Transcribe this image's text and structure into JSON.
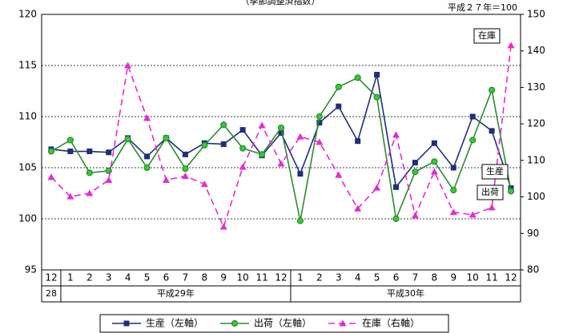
{
  "chart_data": {
    "type": "line",
    "title": "（季節調整済指数）",
    "base_note": "平成２７年＝100",
    "categories": [
      "12",
      "1",
      "2",
      "3",
      "4",
      "5",
      "6",
      "7",
      "8",
      "9",
      "10",
      "11",
      "12",
      "1",
      "2",
      "3",
      "4",
      "5",
      "6",
      "7",
      "8",
      "9",
      "10",
      "11",
      "12"
    ],
    "category_groups": [
      {
        "label": "28",
        "count": 1
      },
      {
        "label": "平成29年",
        "count": 12
      },
      {
        "label": "平成30年",
        "count": 12
      }
    ],
    "ylim": [
      95,
      120
    ],
    "yticks": [
      95,
      100,
      105,
      110,
      115,
      120
    ],
    "y2lim": [
      80,
      150
    ],
    "y2ticks": [
      80,
      90,
      100,
      110,
      120,
      130,
      140,
      150
    ],
    "grid": true,
    "series": [
      {
        "name": "生産（左軸）",
        "label": "生産",
        "color": "#1f2f7a",
        "marker": "square",
        "dash": false,
        "axis": "y",
        "values": [
          106.8,
          106.6,
          106.6,
          106.5,
          107.9,
          106.1,
          107.9,
          106.3,
          107.4,
          107.3,
          108.7,
          106.2,
          108.4,
          104.4,
          109.4,
          111.0,
          107.6,
          114.1,
          103.1,
          105.5,
          107.4,
          105.0,
          110.0,
          108.6,
          103.0
        ]
      },
      {
        "name": "出荷（左軸）",
        "label": "出荷",
        "color": "#2e8b2e",
        "marker": "circle",
        "dash": false,
        "axis": "y",
        "values": [
          106.6,
          107.7,
          104.5,
          104.7,
          107.8,
          105.0,
          107.9,
          104.9,
          107.2,
          109.2,
          106.9,
          106.3,
          108.9,
          99.8,
          110.0,
          112.9,
          113.8,
          111.9,
          100.0,
          104.6,
          105.6,
          102.8,
          107.7,
          112.6,
          102.7
        ]
      },
      {
        "name": "在庫（右軸）",
        "label": "在庫",
        "color": "#e62ad0",
        "marker": "triangle",
        "dash": true,
        "axis": "y2",
        "values": [
          105.4,
          100.1,
          101.0,
          104.6,
          136.0,
          121.6,
          104.6,
          105.7,
          103.5,
          91.8,
          108.2,
          119.6,
          109.1,
          116.5,
          115.0,
          106.0,
          96.8,
          102.5,
          117.0,
          94.9,
          106.9,
          95.8,
          95.1,
          97.1,
          141.5
        ]
      }
    ]
  }
}
